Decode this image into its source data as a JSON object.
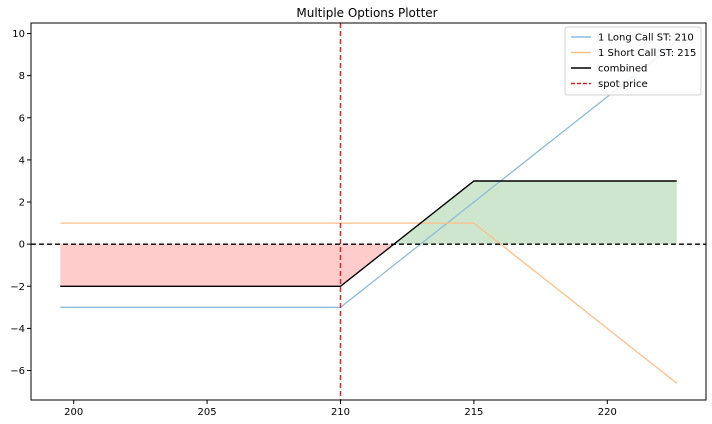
{
  "chart_data": {
    "type": "line",
    "title": "Multiple Options Plotter",
    "xlabel": "",
    "ylabel": "",
    "xlim": [
      198.4,
      223.7
    ],
    "ylim": [
      -7.4,
      10.5
    ],
    "xticks": [
      200,
      205,
      210,
      215,
      220
    ],
    "yticks": [
      -6,
      -4,
      -2,
      0,
      2,
      4,
      6,
      8,
      10
    ],
    "grid": false,
    "legend_position": "top-right",
    "series": [
      {
        "name": "1 Long Call ST: 210",
        "color": "#8fbbd9",
        "style": "solid",
        "x": [
          199.5,
          210,
          222.6
        ],
        "y": [
          -3,
          -3,
          9.6
        ]
      },
      {
        "name": "1 Short Call ST: 215",
        "color": "#ffbf86",
        "style": "solid",
        "x": [
          199.5,
          215,
          222.6
        ],
        "y": [
          1,
          1,
          -6.6
        ]
      },
      {
        "name": "combined",
        "color": "#000000",
        "style": "solid",
        "x": [
          199.5,
          210,
          215,
          222.6
        ],
        "y": [
          -2,
          -2,
          3,
          3
        ]
      }
    ],
    "reference_lines": [
      {
        "name": "spot price",
        "orientation": "vertical",
        "value": 210,
        "color": "#e41a1c",
        "style": "dashed"
      },
      {
        "name": "",
        "orientation": "horizontal",
        "value": 0,
        "color": "#000000",
        "style": "dashed"
      }
    ],
    "fills": {
      "loss_color": "#ffcccc",
      "profit_color": "#cde6cd"
    }
  }
}
